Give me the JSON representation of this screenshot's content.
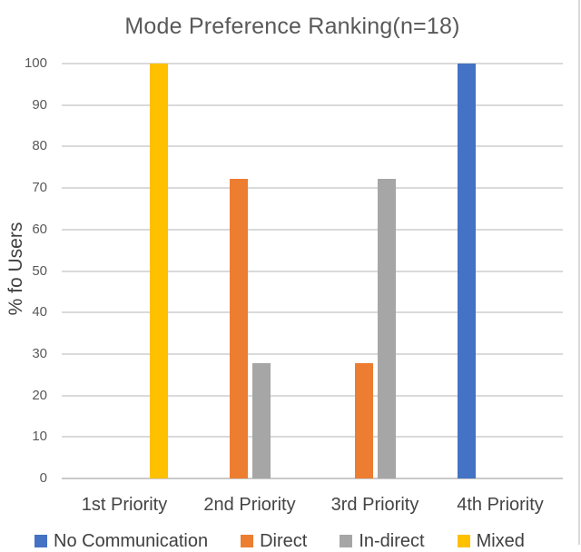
{
  "chart_data": {
    "type": "bar",
    "title": "Mode Preference Ranking(n=18)",
    "xlabel": "",
    "ylabel": "% fo Users",
    "categories": [
      "1st Priority",
      "2nd Priority",
      "3rd Priority",
      "4th Priority"
    ],
    "series": [
      {
        "name": "No Communication",
        "color": "#4472C4",
        "values": [
          0,
          0,
          0,
          100
        ]
      },
      {
        "name": "Direct",
        "color": "#ED7D31",
        "values": [
          0,
          72.2,
          27.8,
          0
        ]
      },
      {
        "name": "In-direct",
        "color": "#A6A6A6",
        "values": [
          0,
          27.8,
          72.2,
          0
        ]
      },
      {
        "name": "Mixed",
        "color": "#FFC000",
        "values": [
          100,
          0,
          0,
          0
        ]
      }
    ],
    "ylim": [
      0,
      100
    ],
    "yticks": [
      0,
      10,
      20,
      30,
      40,
      50,
      60,
      70,
      80,
      90,
      100
    ],
    "grid": true,
    "legend_position": "bottom"
  }
}
